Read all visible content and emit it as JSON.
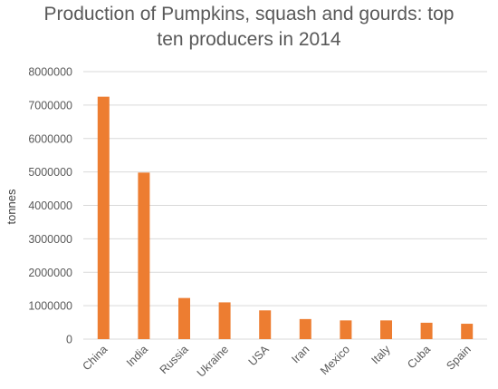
{
  "chart_data": {
    "type": "bar",
    "title_lines": [
      "Production of Pumpkins, squash and gourds: top",
      "ten producers in 2014"
    ],
    "xlabel": "",
    "ylabel": "tonnes",
    "categories": [
      "China",
      "India",
      "Russia",
      "Ukraine",
      "USA",
      "Iran",
      "Mexico",
      "Italy",
      "Cuba",
      "Spain"
    ],
    "values": [
      7250000,
      4980000,
      1230000,
      1100000,
      860000,
      600000,
      560000,
      560000,
      490000,
      460000
    ],
    "ylim": [
      0,
      8000000
    ],
    "yticks": [
      "0",
      "1000000",
      "2000000",
      "3000000",
      "4000000",
      "5000000",
      "6000000",
      "7000000",
      "8000000"
    ],
    "grid": true,
    "legend": "none",
    "bar_color": "#ed7d31"
  }
}
